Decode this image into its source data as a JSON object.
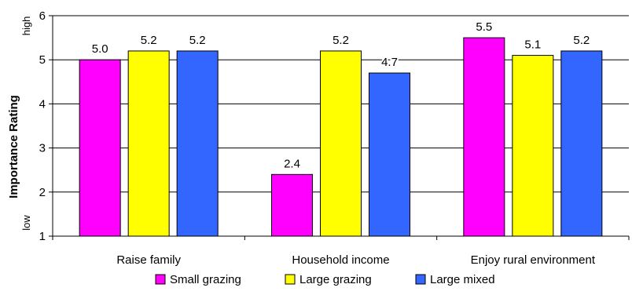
{
  "chart_data": {
    "type": "bar",
    "title": "",
    "xlabel": "",
    "ylabel": "Importance Rating",
    "y_axis_high_label": "high",
    "y_axis_low_label": "low",
    "ylim": [
      1,
      6
    ],
    "yticks": [
      1,
      2,
      3,
      4,
      5,
      6
    ],
    "grid": "horizontal",
    "legend_position": "bottom",
    "categories": [
      "Raise family",
      "Household income",
      "Enjoy rural environment"
    ],
    "series": [
      {
        "name": "Small grazing",
        "color": "#ff00ff",
        "values": [
          5.0,
          2.4,
          5.5
        ],
        "labels": [
          "5.0",
          "2.4",
          "5.5"
        ]
      },
      {
        "name": "Large grazing",
        "color": "#ffff00",
        "values": [
          5.2,
          5.2,
          5.1
        ],
        "labels": [
          "5.2",
          "5.2",
          "5.1"
        ]
      },
      {
        "name": "Large mixed",
        "color": "#3366ff",
        "values": [
          5.2,
          4.7,
          5.2
        ],
        "labels": [
          "5.2",
          "4.7",
          "5.2"
        ]
      }
    ]
  }
}
